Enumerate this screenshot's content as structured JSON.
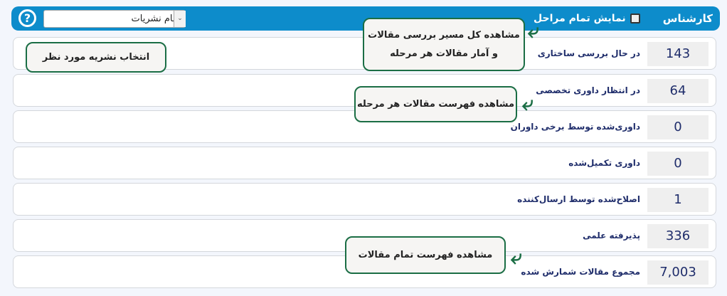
{
  "header": {
    "expert_label": "کارشناس",
    "show_all_label": "نمایش تمام مراحل",
    "show_all_checked": false,
    "journal_select": "تمام نشریات",
    "help_icon": "question-circle-icon"
  },
  "rows": [
    {
      "label": "در حال بررسی ساختاری",
      "value": "143"
    },
    {
      "label": "در انتظار داوری تخصصی",
      "value": "64"
    },
    {
      "label": "داوری‌شده توسط برخی داوران",
      "value": "0"
    },
    {
      "label": "داوری تکمیل‌شده",
      "value": "0"
    },
    {
      "label": "اصلاح‌شده توسط ارسال‌کننده",
      "value": "1"
    },
    {
      "label": "پذیرفته علمی",
      "value": "336"
    },
    {
      "label": "مجموع مقالات شمارش شده",
      "value": "7,003"
    }
  ],
  "callouts": {
    "path_line1": "مشاهده کل مسیر بررسی مقالات",
    "path_line2": "و آمار مقالات هر مرحله",
    "select_journal": "انتخاب نشریه مورد نظر",
    "stage_list": "مشاهده فهرست مقالات هر مرحله",
    "all_list": "مشاهده فهرست تمام مقالات"
  },
  "colors": {
    "header": "#0d8ccb",
    "callout_border": "#1b6e45",
    "value_text": "#1f2d6b"
  }
}
